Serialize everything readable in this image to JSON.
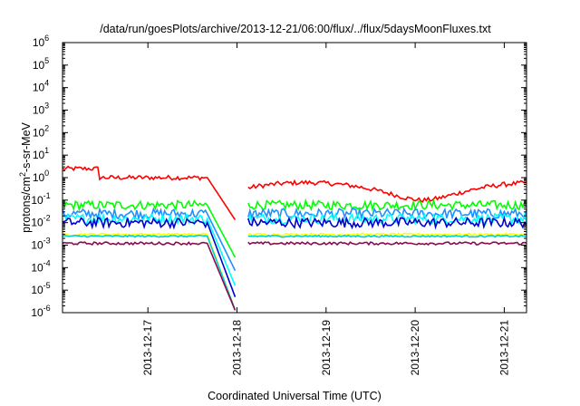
{
  "chart_data": {
    "type": "line",
    "title": "/data/run/goesPlots/archive/2013-12-21/06:00/flux/../flux/5daysMoonFluxes.txt",
    "xlabel": "Coordinated Universal Time (UTC)",
    "ylabel_main": "protons/cm",
    "ylabel_sup": "2",
    "ylabel_rest": "-s-sr-MeV",
    "y_scale": "log",
    "ylim": [
      1e-06,
      1000000.0
    ],
    "y_ticks": [
      {
        "base": "10",
        "exp": "-6",
        "value": 1e-06
      },
      {
        "base": "10",
        "exp": "-5",
        "value": 1e-05
      },
      {
        "base": "10",
        "exp": "-4",
        "value": 0.0001
      },
      {
        "base": "10",
        "exp": "-3",
        "value": 0.001
      },
      {
        "base": "10",
        "exp": "-2",
        "value": 0.01
      },
      {
        "base": "10",
        "exp": "-1",
        "value": 0.1
      },
      {
        "base": "10",
        "exp": "0",
        "value": 1
      },
      {
        "base": "10",
        "exp": "1",
        "value": 10
      },
      {
        "base": "10",
        "exp": "2",
        "value": 100
      },
      {
        "base": "10",
        "exp": "3",
        "value": 1000
      },
      {
        "base": "10",
        "exp": "4",
        "value": 10000
      },
      {
        "base": "10",
        "exp": "5",
        "value": 100000
      },
      {
        "base": "10",
        "exp": "6",
        "value": 1000000
      }
    ],
    "xlim": [
      "2013-12-16T01:00",
      "2013-12-21T06:00"
    ],
    "x_ticks": [
      "2013-12-17",
      "2013-12-18",
      "2013-12-19",
      "2013-12-20",
      "2013-12-21"
    ],
    "grid": false,
    "legend": "none",
    "series": [
      {
        "color": "#ff0000",
        "base": 1.0,
        "noise": 0.1,
        "event_start": "2013-12-17T16:00",
        "event_floor": 0.01
      },
      {
        "color": "#00ff00",
        "base": 0.06,
        "noise": 0.2,
        "event_start": "2013-12-17T16:00",
        "event_floor": 0.0002
      },
      {
        "color": "#1e90ff",
        "base": 0.025,
        "noise": 0.22,
        "event_start": "2013-12-17T16:00",
        "event_floor": 5e-05
      },
      {
        "color": "#00ffff",
        "base": 0.015,
        "noise": 0.22,
        "event_start": "2013-12-17T16:00",
        "event_floor": 1e-05
      },
      {
        "color": "#0000cd",
        "base": 0.01,
        "noise": 0.22,
        "event_start": "2013-12-17T16:00",
        "event_floor": 3e-06
      },
      {
        "color": "#ffff00",
        "base": 0.003,
        "noise": 0.05,
        "event_start": "2013-12-17T16:00",
        "event_floor": 8e-07
      },
      {
        "color": "#00ced1",
        "base": 0.0025,
        "noise": 0.04,
        "event_start": "2013-12-17T16:00",
        "event_floor": 8e-07
      },
      {
        "color": "#8b0a50",
        "base": 0.0012,
        "noise": 0.06,
        "event_start": "2013-12-17T16:00",
        "event_floor": 8e-07
      }
    ],
    "gap": [
      "2013-12-18T00:00",
      "2013-12-18T03:00"
    ]
  }
}
